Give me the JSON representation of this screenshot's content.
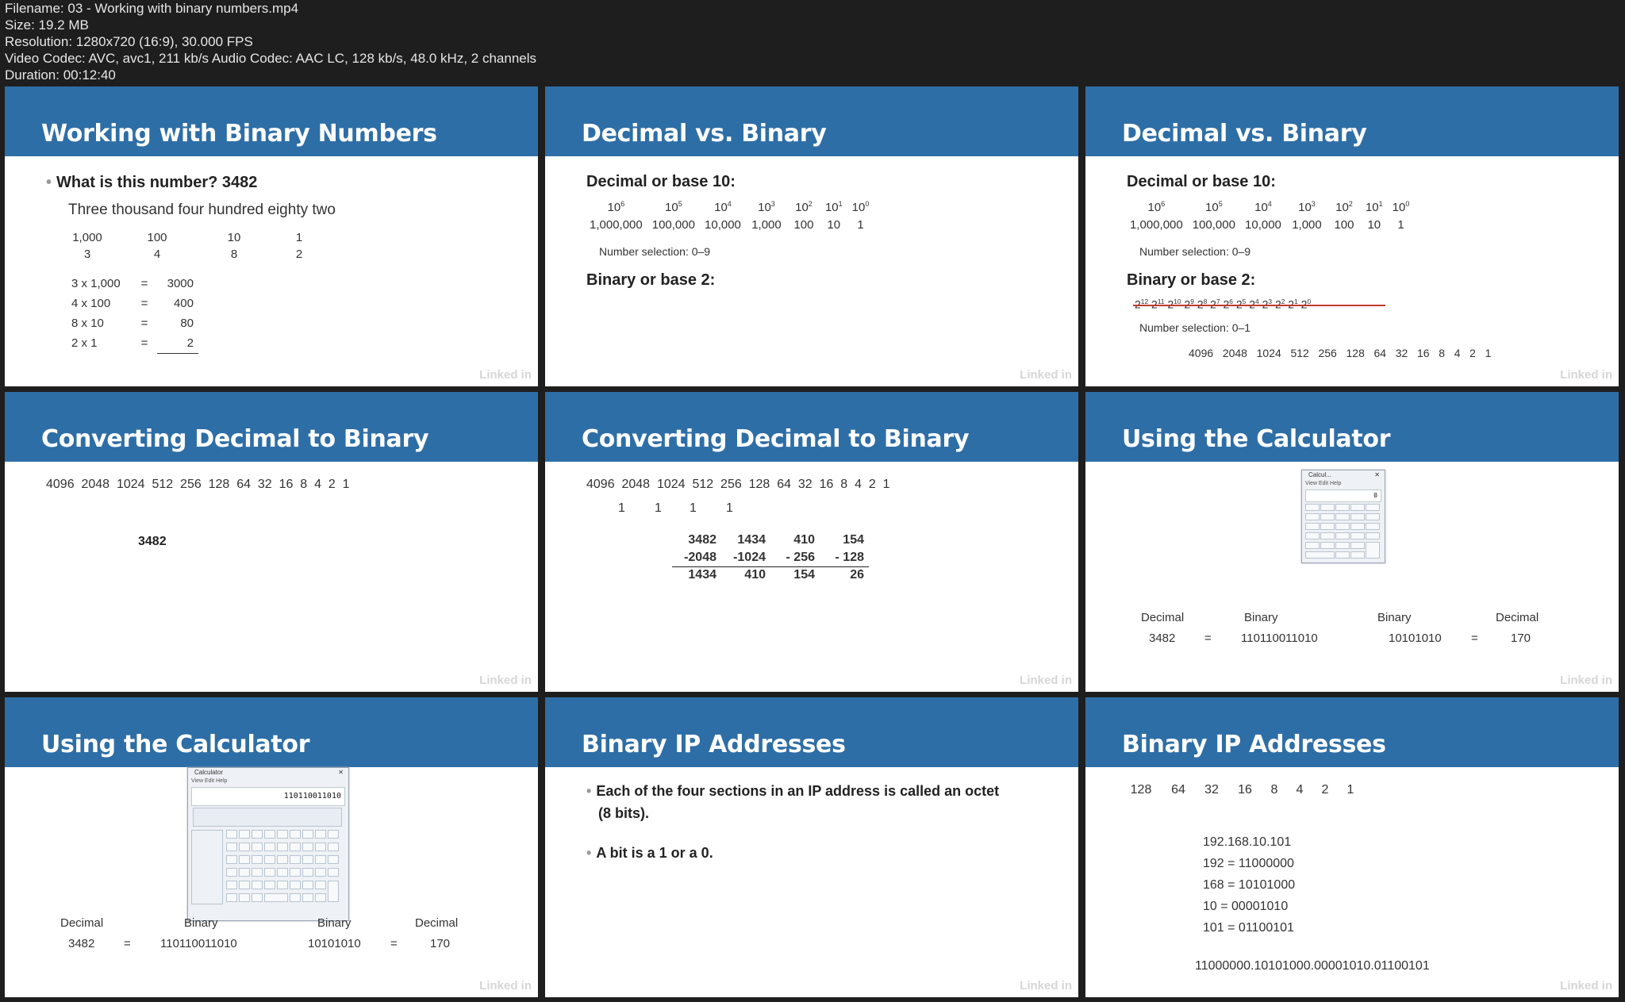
{
  "file_info": {
    "filename": "Filename: 03 - Working with binary numbers.mp4",
    "size": "Size: 19.2 MB",
    "resolution": "Resolution: 1280x720 (16:9), 30.000 FPS",
    "codec": "Video Codec: AVC, avc1, 211 kb/s Audio Codec: AAC LC, 128 kb/s, 48.0 kHz, 2 channels",
    "duration": "Duration: 00:12:40"
  },
  "colors": {
    "header_band": "#2e6ea6",
    "background": "#1e1e1e",
    "slide_bg": "#ffffff"
  },
  "watermark": "Linked in",
  "slides": {
    "s1": {
      "title": "Working with Binary Numbers",
      "bullet": "What is this number? 3482",
      "words": "Three thousand four hundred eighty two",
      "places": [
        "1,000",
        "100",
        "10",
        "1"
      ],
      "digits": [
        "3",
        "4",
        "8",
        "2"
      ],
      "rows": [
        {
          "expr": "3 x 1,000",
          "eq": "=",
          "val": "3000"
        },
        {
          "expr": "4 x 100",
          "eq": "=",
          "val": "400"
        },
        {
          "expr": "8 x 10",
          "eq": "=",
          "val": "80"
        },
        {
          "expr": "2 x 1",
          "eq": "=",
          "val": "2"
        }
      ]
    },
    "s2": {
      "title": "Decimal vs. Binary",
      "dec_label": "Decimal or base 10:",
      "dec_base": "10",
      "dec_exps": [
        "6",
        "5",
        "4",
        "3",
        "2",
        "1",
        "0"
      ],
      "dec_values": [
        "1,000,000",
        "100,000",
        "10,000",
        "1,000",
        "100",
        "10",
        "1"
      ],
      "dec_selection": "Number selection: 0–9",
      "bin_label": "Binary or base 2:"
    },
    "s3": {
      "title": "Decimal vs. Binary",
      "dec_label": "Decimal or base 10:",
      "dec_base": "10",
      "dec_exps": [
        "6",
        "5",
        "4",
        "3",
        "2",
        "1",
        "0"
      ],
      "dec_values": [
        "1,000,000",
        "100,000",
        "10,000",
        "1,000",
        "100",
        "10",
        "1"
      ],
      "dec_selection": "Number selection: 0–9",
      "bin_label": "Binary or base 2:",
      "bin_base": "2",
      "bin_exps": [
        "12",
        "11",
        "10",
        "9",
        "8",
        "7",
        "6",
        "5",
        "4",
        "3",
        "2",
        "1",
        "0"
      ],
      "bin_selection": "Number selection: 0–1",
      "bin_values": "4096   2048   1024   512   256   128   64   32   16   8   4   2   1"
    },
    "s4": {
      "title": "Converting Decimal to Binary",
      "values": "4096  2048  1024  512  256  128  64  32  16  8  4  2  1",
      "number": "3482"
    },
    "s5": {
      "title": "Converting Decimal to Binary",
      "values": "4096  2048  1024  512  256  128  64  32  16  8  4  2  1",
      "ones": [
        "1",
        "1",
        "1",
        "1"
      ],
      "cols": [
        {
          "top": "3482",
          "sub": "-2048",
          "res": "1434"
        },
        {
          "top": "1434",
          "sub": "-1024",
          "res": "410"
        },
        {
          "top": "410",
          "sub": "- 256",
          "res": "154"
        },
        {
          "top": "154",
          "sub": "- 128",
          "res": "26"
        }
      ]
    },
    "s6": {
      "title": "Using the Calculator",
      "calc_title": "Calcul...",
      "calc_menu": "View   Edit   Help",
      "calc_display": "0",
      "headers": [
        "Decimal",
        "Binary",
        "Binary",
        "Decimal"
      ],
      "values": [
        "3482",
        "=",
        "110110011010",
        "10101010",
        "=",
        "170"
      ]
    },
    "s7": {
      "title": "Using the Calculator",
      "calc_title": "Calculator",
      "calc_menu": "View   Edit   Help",
      "calc_display": "110110011010",
      "headers": [
        "Decimal",
        "Binary",
        "Binary",
        "Decimal"
      ],
      "values": [
        "3482",
        "=",
        "110110011010",
        "10101010",
        "=",
        "170"
      ]
    },
    "s8": {
      "title": "Binary IP Addresses",
      "bullet1a": "Each of the four sections in an IP address is called an octet",
      "bullet1b": "(8 bits).",
      "bullet2": "A bit is a 1 or a 0."
    },
    "s9": {
      "title": "Binary IP Addresses",
      "bits": [
        "128",
        "64",
        "32",
        "16",
        "8",
        "4",
        "2",
        "1"
      ],
      "lines": [
        "192.168.10.101",
        "192 = 11000000",
        "168 = 10101000",
        "10 = 00001010",
        "101 = 01100101"
      ],
      "full": "11000000.10101000.00001010.01100101"
    }
  }
}
